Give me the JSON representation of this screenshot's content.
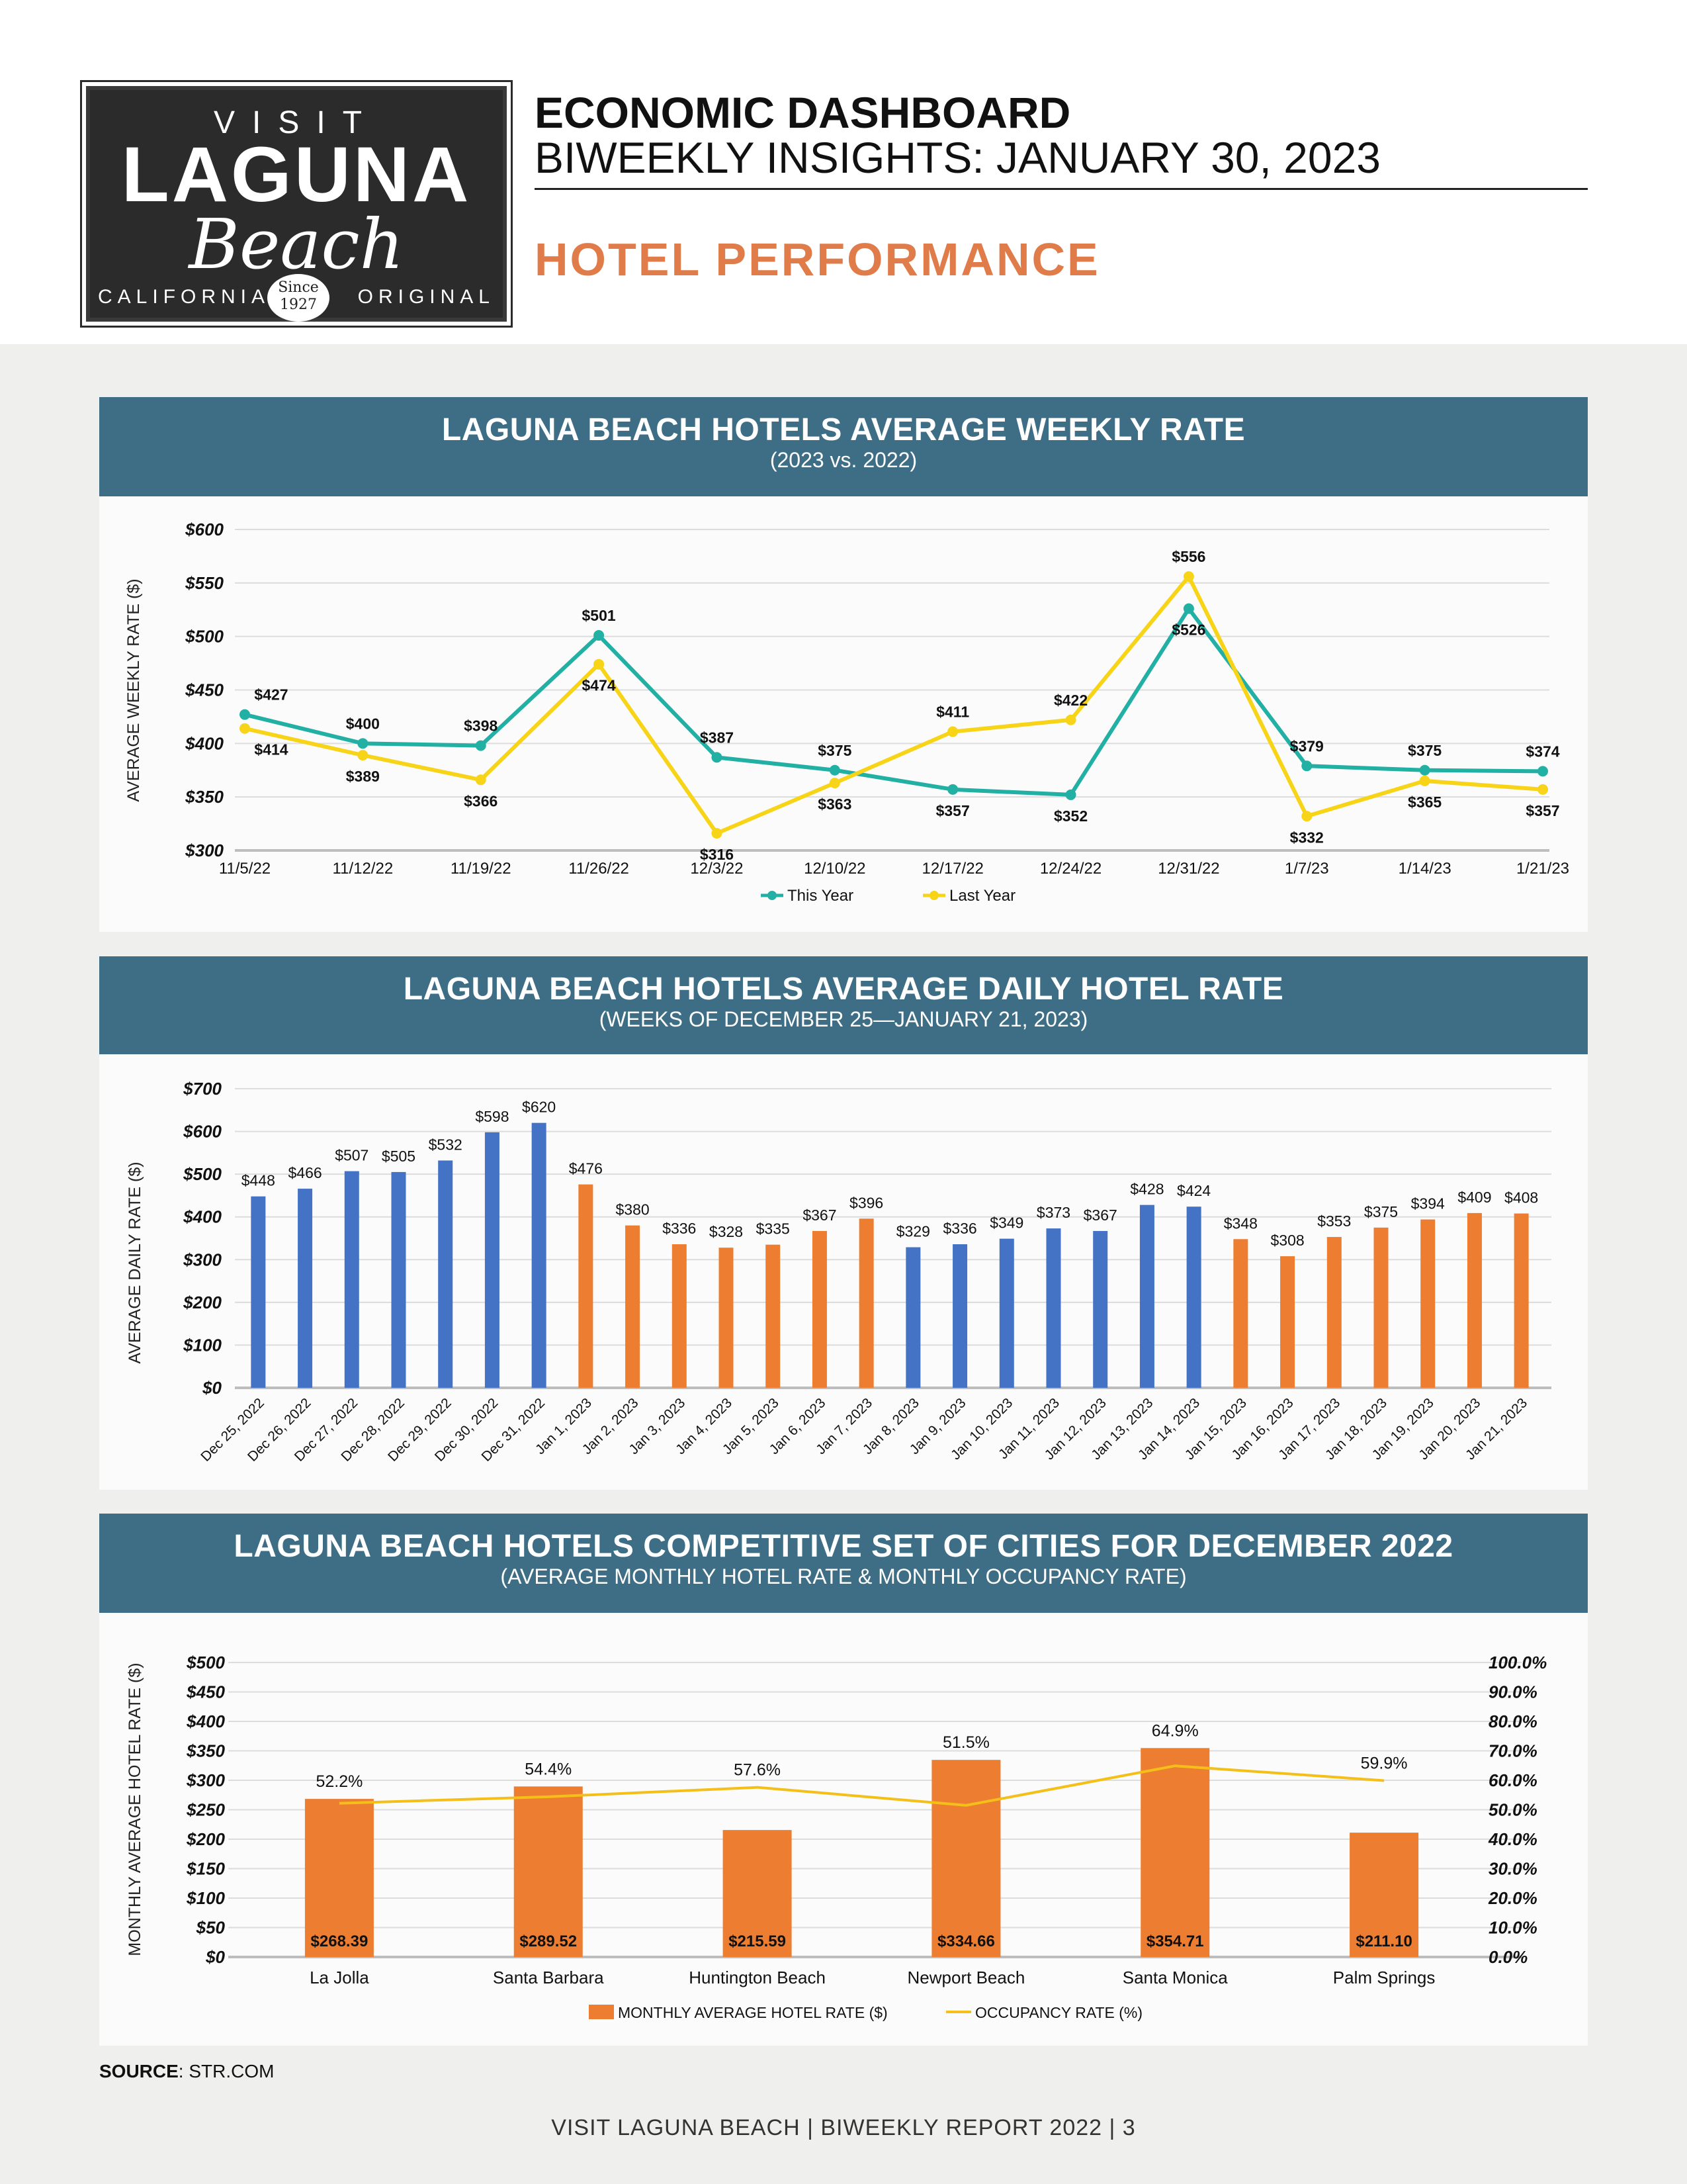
{
  "logo": {
    "visit": "VISIT",
    "laguna": "LAGUNA",
    "beach": "Beach",
    "california": "CALIFORNIA",
    "original": "ORIGINAL",
    "since": "Since",
    "year": "1927"
  },
  "header": {
    "title": "ECONOMIC DASHBOARD",
    "subtitle": "BIWEEKLY INSIGHTS: JANUARY 30, 2023",
    "section": "HOTEL PERFORMANCE"
  },
  "colors": {
    "banner": "#3e6e85",
    "this_year": "#22b0a5",
    "last_year": "#f7d417",
    "bar_blue": "#4472c4",
    "bar_orange": "#ed7d31",
    "occupancy_line": "#f5bf1a"
  },
  "chart_data": [
    {
      "type": "line",
      "title": "LAGUNA BEACH HOTELS AVERAGE WEEKLY RATE",
      "subtitle": "(2023 vs. 2022)",
      "xlabel": "",
      "ylabel": "AVERAGE WEEKLY RATE ($)",
      "ylim": [
        300,
        600
      ],
      "yticks": [
        "$300",
        "$350",
        "$400",
        "$450",
        "$500",
        "$550",
        "$600"
      ],
      "categories": [
        "11/5/22",
        "11/12/22",
        "11/19/22",
        "11/26/22",
        "12/3/22",
        "12/10/22",
        "12/17/22",
        "12/24/22",
        "12/31/22",
        "1/7/23",
        "1/14/23",
        "1/21/23"
      ],
      "series": [
        {
          "name": "This Year",
          "values": [
            427,
            400,
            398,
            501,
            387,
            375,
            357,
            352,
            526,
            379,
            375,
            374
          ],
          "labels": [
            "$427",
            "$400",
            "$398",
            "$501",
            "$387",
            "$375",
            "$357",
            "$352",
            "$526",
            "$379",
            "$375",
            "$374"
          ]
        },
        {
          "name": "Last Year",
          "values": [
            414,
            389,
            366,
            474,
            316,
            363,
            411,
            422,
            556,
            332,
            365,
            357
          ],
          "labels": [
            "$414",
            "$389",
            "$366",
            "$474",
            "$316",
            "$363",
            "$411",
            "$422",
            "$556",
            "$332",
            "$365",
            "$357"
          ]
        }
      ],
      "legend": "bottom",
      "grid": true
    },
    {
      "type": "bar",
      "title": "LAGUNA BEACH HOTELS AVERAGE DAILY HOTEL RATE",
      "subtitle": "(WEEKS OF DECEMBER 25—JANUARY 21, 2023)",
      "xlabel": "",
      "ylabel": "AVERAGE DAILY RATE ($)",
      "ylim": [
        0,
        700
      ],
      "yticks": [
        "$0",
        "$100",
        "$200",
        "$300",
        "$400",
        "$500",
        "$600",
        "$700"
      ],
      "categories": [
        "Dec 25, 2022",
        "Dec 26, 2022",
        "Dec 27, 2022",
        "Dec 28, 2022",
        "Dec 29, 2022",
        "Dec 30, 2022",
        "Dec 31, 2022",
        "Jan 1, 2023",
        "Jan 2, 2023",
        "Jan 3, 2023",
        "Jan 4, 2023",
        "Jan 5, 2023",
        "Jan 6, 2023",
        "Jan 7, 2023",
        "Jan 8, 2023",
        "Jan 9, 2023",
        "Jan 10, 2023",
        "Jan 11, 2023",
        "Jan 12, 2023",
        "Jan 13, 2023",
        "Jan 14, 2023",
        "Jan 15, 2023",
        "Jan 16, 2023",
        "Jan 17, 2023",
        "Jan 18, 2023",
        "Jan 19, 2023",
        "Jan 20, 2023",
        "Jan 21, 2023"
      ],
      "values": [
        448,
        466,
        507,
        505,
        532,
        598,
        620,
        476,
        380,
        336,
        328,
        335,
        367,
        396,
        329,
        336,
        349,
        373,
        367,
        428,
        424,
        348,
        308,
        353,
        375,
        394,
        409,
        408
      ],
      "labels": [
        "$448",
        "$466",
        "$507",
        "$505",
        "$532",
        "$598",
        "$620",
        "$476",
        "$380",
        "$336",
        "$328",
        "$335",
        "$367",
        "$396",
        "$329",
        "$336",
        "$349",
        "$373",
        "$367",
        "$428",
        "$424",
        "$348",
        "$308",
        "$353",
        "$375",
        "$394",
        "$409",
        "$408"
      ],
      "bar_colors": [
        "blue",
        "blue",
        "blue",
        "blue",
        "blue",
        "blue",
        "blue",
        "orange",
        "orange",
        "orange",
        "orange",
        "orange",
        "orange",
        "orange",
        "blue",
        "blue",
        "blue",
        "blue",
        "blue",
        "blue",
        "blue",
        "orange",
        "orange",
        "orange",
        "orange",
        "orange",
        "orange",
        "orange"
      ],
      "grid": true
    },
    {
      "type": "bar",
      "title": "LAGUNA BEACH HOTELS COMPETITIVE SET OF CITIES FOR DECEMBER 2022",
      "subtitle": "(AVERAGE MONTHLY HOTEL RATE & MONTHLY OCCUPANCY RATE)",
      "xlabel": "",
      "ylabel": "MONTHLY AVERAGE HOTEL RATE ($)",
      "ylim": [
        0,
        500
      ],
      "yticks": [
        "$0",
        "$50",
        "$100",
        "$150",
        "$200",
        "$250",
        "$300",
        "$350",
        "$400",
        "$450",
        "$500"
      ],
      "y2lim": [
        0,
        100
      ],
      "y2ticks": [
        "0.0%",
        "10.0%",
        "20.0%",
        "30.0%",
        "40.0%",
        "50.0%",
        "60.0%",
        "70.0%",
        "80.0%",
        "90.0%",
        "100.0%"
      ],
      "categories": [
        "La Jolla",
        "Santa Barbara",
        "Huntington Beach",
        "Newport Beach",
        "Santa Monica",
        "Palm Springs"
      ],
      "series": [
        {
          "name": "MONTHLY AVERAGE HOTEL RATE ($)",
          "values": [
            268.39,
            289.52,
            215.59,
            334.66,
            354.71,
            211.1
          ],
          "labels": [
            "$268.39",
            "$289.52",
            "$215.59",
            "$334.66",
            "$354.71",
            "$211.10"
          ]
        },
        {
          "name": "OCCUPANCY RATE (%)",
          "values": [
            52.2,
            54.4,
            57.6,
            51.5,
            64.9,
            59.9
          ],
          "labels": [
            "52.2%",
            "54.4%",
            "57.6%",
            "51.5%",
            "64.9%",
            "59.9%"
          ]
        }
      ],
      "legend": "bottom",
      "grid": true
    }
  ],
  "source": {
    "label": "SOURCE",
    "text": ": STR.COM"
  },
  "footer": "VISIT LAGUNA BEACH  |  BIWEEKLY REPORT 2022  |  3"
}
